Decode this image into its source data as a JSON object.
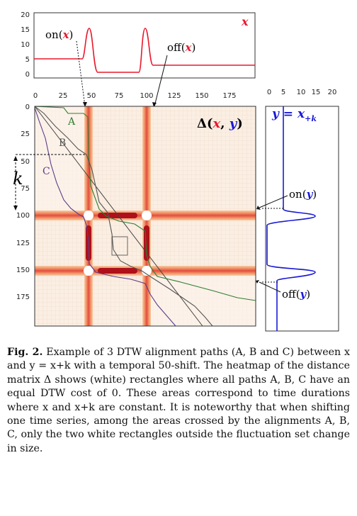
{
  "top_plot": {
    "series_label": "x",
    "y_ticks": [
      "20",
      "15",
      "10",
      "5",
      "0"
    ],
    "annot_on": "on",
    "annot_off": "off",
    "annot_arg": "x"
  },
  "heatmap": {
    "title_delta": "Δ",
    "title_args": "x, y",
    "x_ticks": [
      "0",
      "25",
      "50",
      "75",
      "100",
      "125",
      "150",
      "175"
    ],
    "y_ticks": [
      "0",
      "25",
      "50",
      "75",
      "100",
      "125",
      "150",
      "175"
    ],
    "k_label": "k",
    "path_labels": [
      "A",
      "B",
      "C"
    ]
  },
  "right_plot": {
    "title": "y = x",
    "title_sub": "+k",
    "x_ticks": [
      "0",
      "5",
      "10",
      "15",
      "20"
    ],
    "annot_on": "on",
    "annot_off": "off",
    "annot_arg": "y"
  },
  "caption": {
    "label": "Fig. 2.",
    "text": "Example of 3 DTW alignment paths (A, B and C) between x and y = x+k with a temporal 50-shift. The heatmap of the distance matrix Δ shows (white) rectangles where all paths A, B, C have an equal DTW cost of 0. These areas correspond to time durations where x and x+k are constant. It is noteworthy that when shifting one time series, among the areas crossed by the alignments A, B, C, only the two white rectangles outside the fluctuation set change in size."
  },
  "colors": {
    "series_x": "#e8192c",
    "series_y": "#1a1ad6",
    "path_a": "#2e7d32",
    "path_b": "#555555",
    "path_c": "#5e3b8a"
  }
}
